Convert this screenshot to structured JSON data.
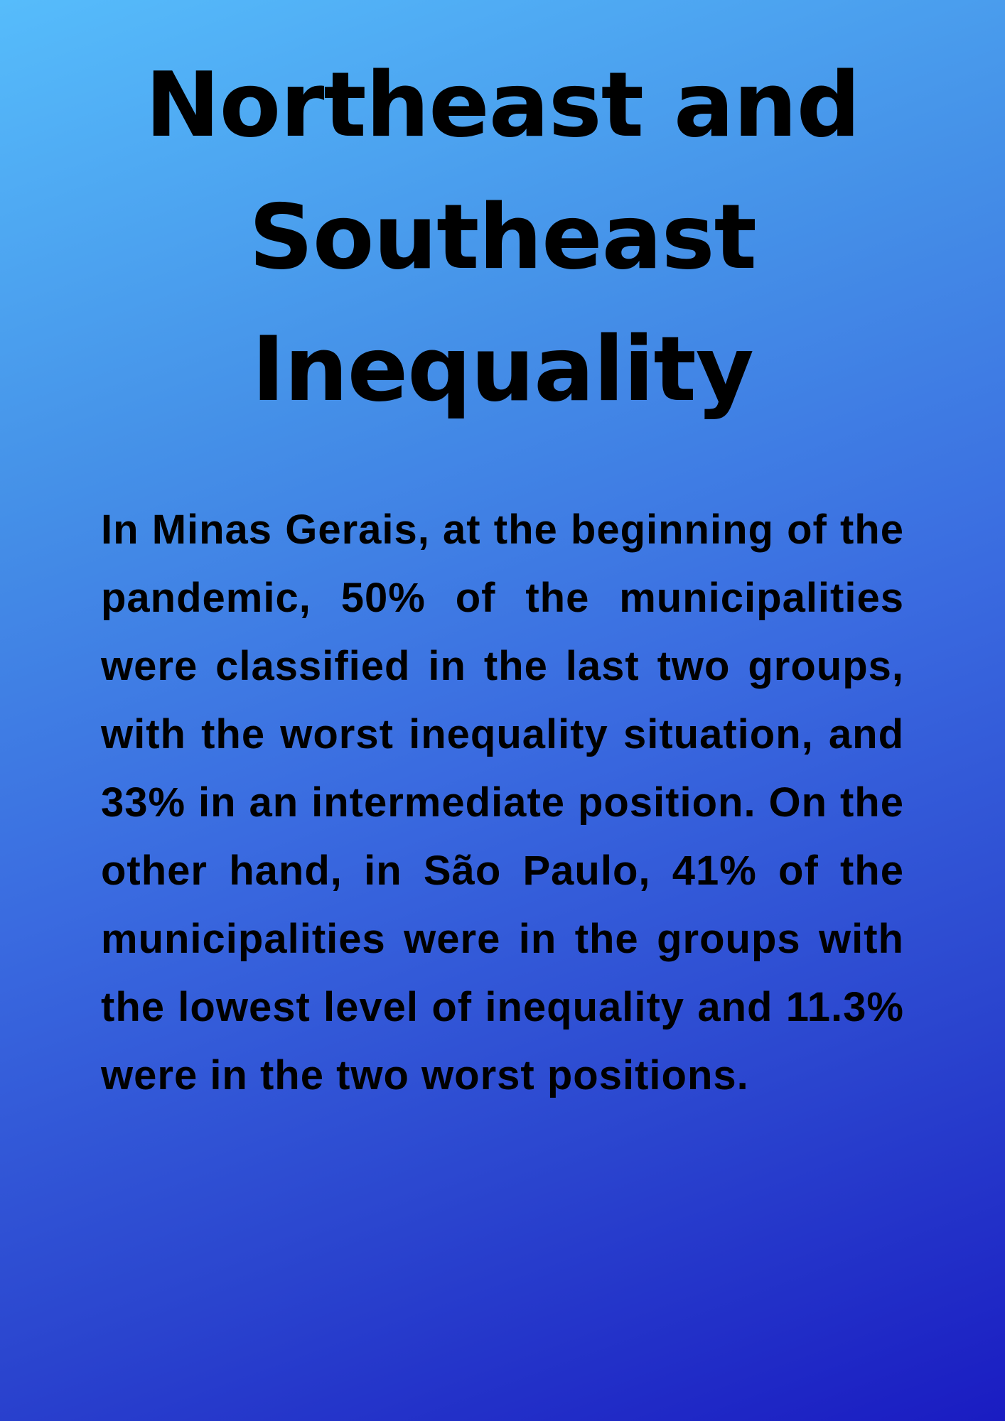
{
  "title": "Northeast and Southeast Inequality",
  "body": "In Minas Gerais, at the beginning of the pandemic, 50% of the municipalities were classified in the last two groups, with the worst inequality situation, and 33% in an intermediate position. On the other hand, in São Paulo, 41% of the municipalities were in the groups with the lowest level of inequality and 11.3% were in the two worst positions.",
  "colors": {
    "gradient_top": "#56bcfb",
    "gradient_bottom": "#1a1cc2",
    "text": "#000000"
  }
}
